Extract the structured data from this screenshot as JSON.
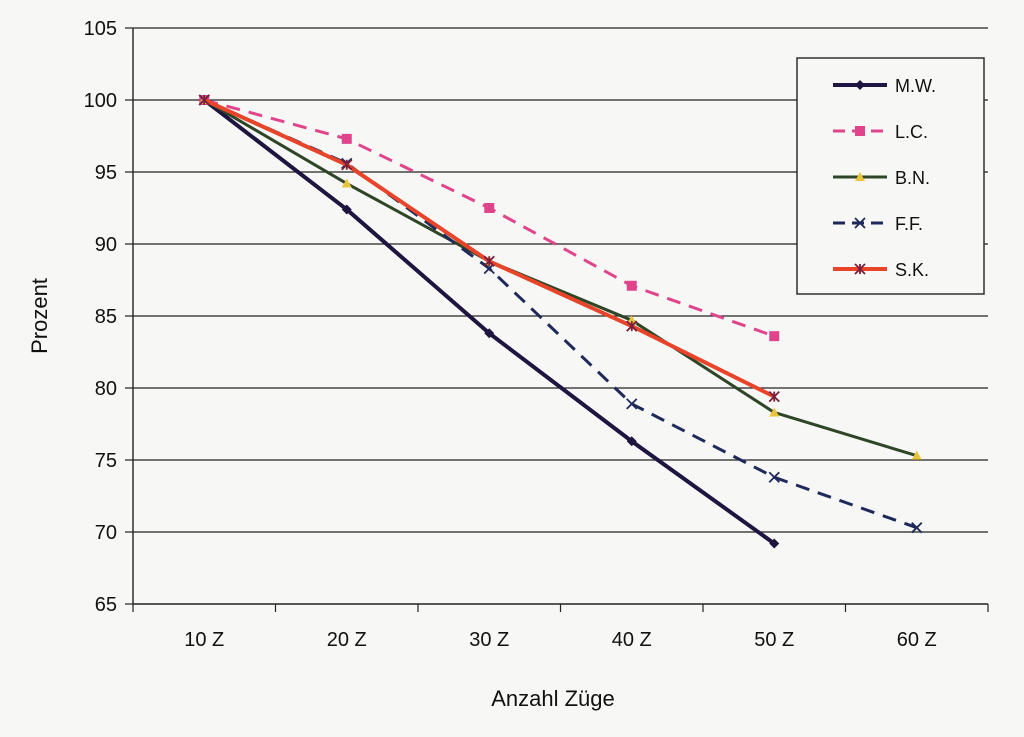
{
  "chart_data": {
    "type": "line",
    "title": "",
    "xlabel": "Anzahl Züge",
    "ylabel": "Prozent",
    "categories": [
      "10 Z",
      "20 Z",
      "30 Z",
      "40 Z",
      "50 Z",
      "60 Z"
    ],
    "ylim": [
      65,
      105
    ],
    "yticks": [
      65,
      70,
      75,
      80,
      85,
      90,
      95,
      100,
      105
    ],
    "grid": "horizontal",
    "legend_position": "top-right",
    "series": [
      {
        "name": "M.W.",
        "values": [
          100,
          92.4,
          83.8,
          76.3,
          69.2,
          null
        ],
        "color": "#1e1540",
        "dash": "solid",
        "marker": "diamond"
      },
      {
        "name": "L.C.",
        "values": [
          100,
          97.3,
          92.5,
          87.1,
          83.6,
          null
        ],
        "color": "#e0458c",
        "dash": "dashed",
        "marker": "square"
      },
      {
        "name": "B.N.",
        "values": [
          100,
          94.2,
          88.8,
          84.7,
          78.3,
          75.3
        ],
        "color": "#2e4526",
        "dash": "solid",
        "marker": "triangle"
      },
      {
        "name": "F.F.",
        "values": [
          100,
          95.6,
          88.3,
          78.9,
          73.8,
          70.3
        ],
        "color": "#1f2a5c",
        "dash": "dashed",
        "marker": "x"
      },
      {
        "name": "S.K.",
        "values": [
          100,
          95.5,
          88.8,
          84.3,
          79.4,
          null
        ],
        "color": "#e8442a",
        "dash": "solid",
        "marker": "star"
      }
    ]
  }
}
